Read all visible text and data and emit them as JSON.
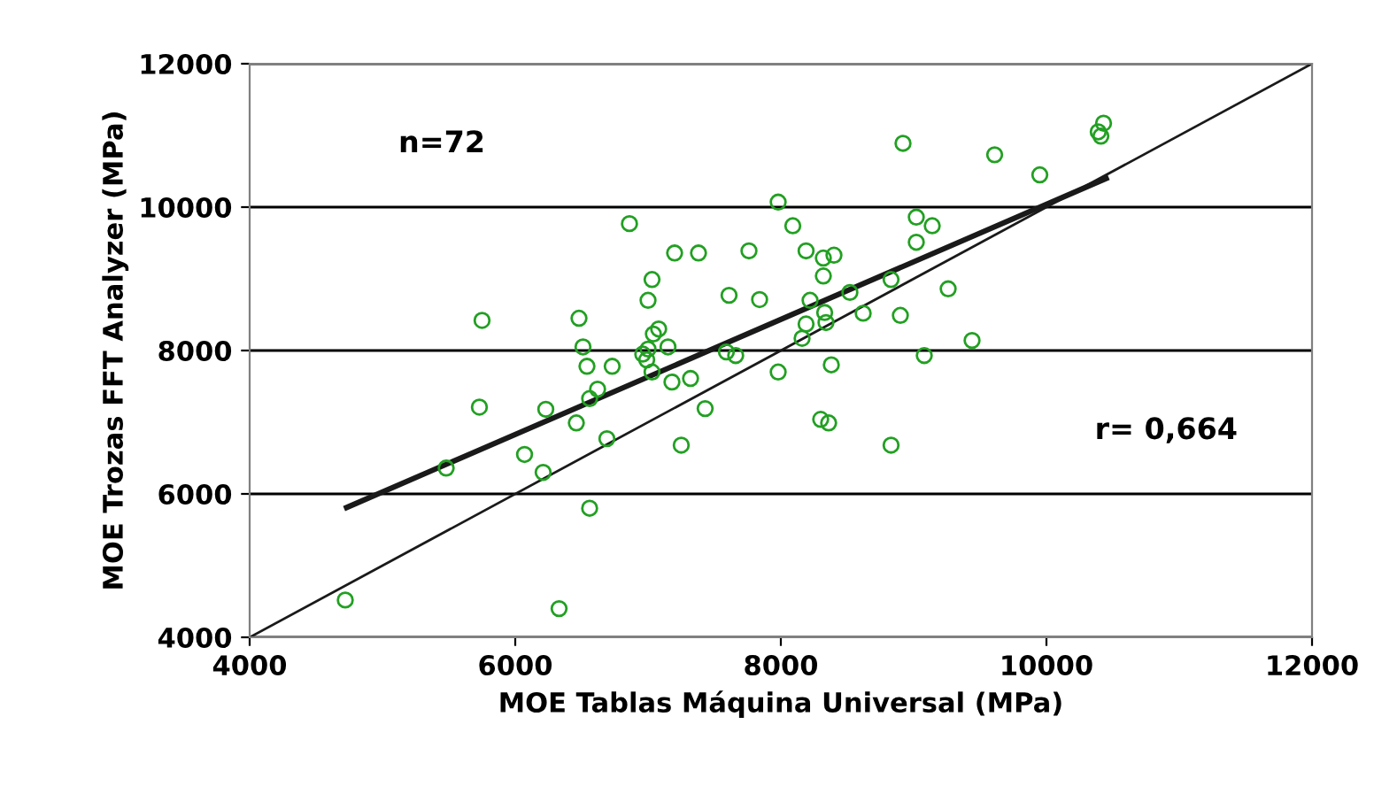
{
  "chart_data": {
    "type": "scatter",
    "xlabel": "MOE Tablas Máquina Universal (MPa)",
    "ylabel": "MOE Trozas FFT Analyzer (MPa)",
    "xlim": [
      4000,
      12000
    ],
    "ylim": [
      4000,
      12000
    ],
    "xticks": [
      4000,
      6000,
      8000,
      10000,
      12000
    ],
    "yticks": [
      4000,
      6000,
      8000,
      10000,
      12000
    ],
    "grid": "y",
    "annotations": [
      "n=72",
      "r= 0,664"
    ],
    "series": [
      {
        "color": "#22a022",
        "marker": "circle",
        "x": [
          4720,
          5480,
          5750,
          5730,
          6070,
          6210,
          6230,
          6330,
          6480,
          6510,
          6540,
          6460,
          6560,
          6560,
          6620,
          6690,
          6730,
          6860,
          7030,
          7000,
          7200,
          7380,
          7040,
          7080,
          6960,
          7000,
          6990,
          7030,
          7150,
          7180,
          7320,
          7250,
          7430,
          7610,
          7760,
          7840,
          7590,
          7660,
          7980,
          8090,
          8190,
          8220,
          8190,
          8160,
          7980,
          8300,
          8320,
          8400,
          8320,
          8330,
          8340,
          8380,
          8360,
          8520,
          8620,
          8830,
          8900,
          8920,
          9020,
          9140,
          9020,
          9260,
          9080,
          9440,
          8830,
          9610,
          9950,
          10390,
          10430,
          10410
        ],
        "values": [
          4520,
          6360,
          8420,
          7210,
          6550,
          6300,
          7180,
          4400,
          8450,
          8050,
          7780,
          6990,
          5800,
          7330,
          7460,
          6770,
          7780,
          9770,
          8990,
          8700,
          9360,
          9360,
          8230,
          8300,
          7950,
          8020,
          7870,
          7700,
          8050,
          7560,
          7610,
          6680,
          7190,
          8770,
          9390,
          8710,
          7980,
          7930,
          10070,
          9740,
          9390,
          8700,
          8370,
          8170,
          7700,
          7040,
          9290,
          9330,
          9040,
          8530,
          8390,
          7800,
          6990,
          8810,
          8520,
          8990,
          8490,
          10890,
          9860,
          9740,
          9510,
          8860,
          7930,
          8140,
          6680,
          10730,
          10450,
          11050,
          11170,
          10990
        ]
      },
      {
        "type": "line",
        "color": "#1a1a1a",
        "marker": "none",
        "line_style": "solid",
        "x": [
          4730,
          10450
        ],
        "values": [
          5810,
          10400
        ]
      },
      {
        "type": "line",
        "color": "#1a1a1a",
        "marker": "none",
        "line_style": "solid",
        "x": [
          4000,
          12000
        ],
        "values": [
          4000,
          12000
        ]
      }
    ]
  }
}
